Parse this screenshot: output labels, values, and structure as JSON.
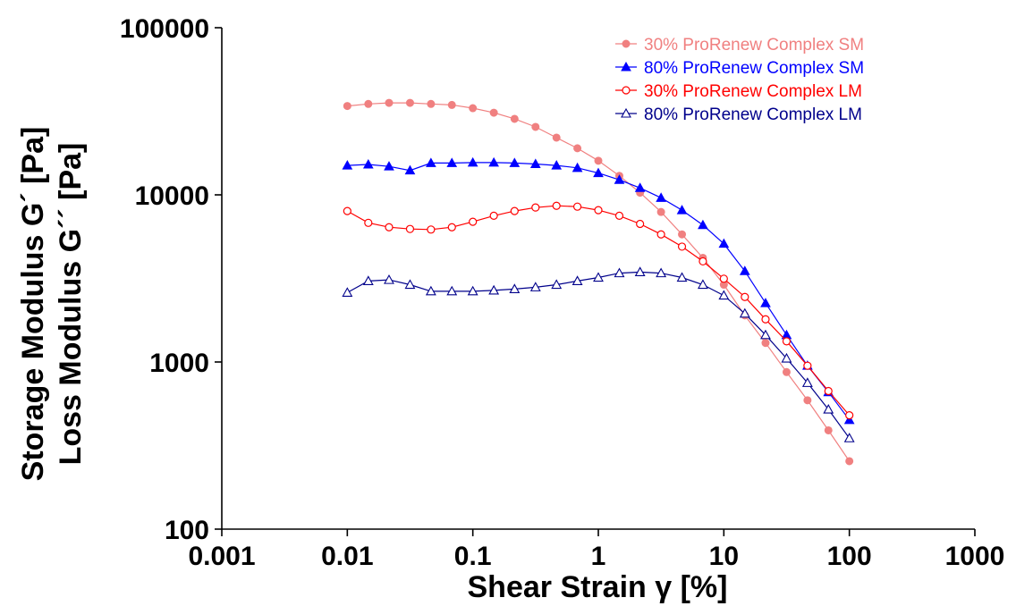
{
  "chart_data": {
    "type": "line",
    "xscale": "log",
    "yscale": "log",
    "xlim": [
      0.001,
      1000
    ],
    "ylim": [
      100,
      100000
    ],
    "xticks": [
      "0.001",
      "0.01",
      "0.1",
      "1",
      "10",
      "100",
      "1000"
    ],
    "yticks": [
      "100",
      "1000",
      "10000",
      "100000"
    ],
    "xlabel": "Shear Strain γ [%]",
    "ylabel_lines": [
      "Storage Modulus G´ [Pa]",
      "Loss Modulus G´´ [Pa]"
    ],
    "grid": false,
    "legend_position": "top-right",
    "series": [
      {
        "name": "30% ProRenew Complex SM",
        "color": "#f08080",
        "marker": "filled-circle",
        "x": [
          0.01,
          0.0147,
          0.0215,
          0.0316,
          0.0464,
          0.0681,
          0.1,
          0.147,
          0.215,
          0.316,
          0.464,
          0.681,
          1,
          1.47,
          2.15,
          3.16,
          4.64,
          6.81,
          10,
          14.7,
          21.5,
          31.6,
          46.4,
          68.1,
          100
        ],
        "y": [
          34000,
          35000,
          35500,
          35500,
          35000,
          34500,
          33000,
          31000,
          28500,
          25500,
          22000,
          19000,
          16000,
          13000,
          10300,
          7900,
          5800,
          4200,
          2900,
          1900,
          1300,
          870,
          590,
          390,
          255
        ]
      },
      {
        "name": "80% ProRenew Complex SM",
        "color": "#0000ff",
        "marker": "filled-triangle",
        "x": [
          0.01,
          0.0147,
          0.0215,
          0.0316,
          0.0464,
          0.0681,
          0.1,
          0.147,
          0.215,
          0.316,
          0.464,
          0.681,
          1,
          1.47,
          2.15,
          3.16,
          4.64,
          6.81,
          10,
          14.7,
          21.5,
          31.6,
          46.4,
          68.1,
          100
        ],
        "y": [
          15000,
          15200,
          14800,
          14000,
          15500,
          15500,
          15600,
          15600,
          15500,
          15300,
          15000,
          14500,
          13500,
          12300,
          11000,
          9600,
          8100,
          6600,
          5100,
          3500,
          2250,
          1450,
          950,
          660,
          450
        ]
      },
      {
        "name": "30% ProRenew Complex LM",
        "color": "#ff0000",
        "marker": "open-circle",
        "x": [
          0.01,
          0.0147,
          0.0215,
          0.0316,
          0.0464,
          0.0681,
          0.1,
          0.147,
          0.215,
          0.316,
          0.464,
          0.681,
          1,
          1.47,
          2.15,
          3.16,
          4.64,
          6.81,
          10,
          14.7,
          21.5,
          31.6,
          46.4,
          68.1,
          100
        ],
        "y": [
          8000,
          6800,
          6400,
          6250,
          6200,
          6400,
          6900,
          7500,
          8000,
          8400,
          8600,
          8500,
          8100,
          7500,
          6700,
          5800,
          4900,
          4000,
          3150,
          2450,
          1800,
          1330,
          950,
          670,
          480
        ]
      },
      {
        "name": "80% ProRenew Complex LM",
        "color": "#00008b",
        "marker": "open-triangle",
        "x": [
          0.01,
          0.0147,
          0.0215,
          0.0316,
          0.0464,
          0.0681,
          0.1,
          0.147,
          0.215,
          0.316,
          0.464,
          0.681,
          1,
          1.47,
          2.15,
          3.16,
          4.64,
          6.81,
          10,
          14.7,
          21.5,
          31.6,
          46.4,
          68.1,
          100
        ],
        "y": [
          2600,
          3050,
          3100,
          2900,
          2650,
          2650,
          2650,
          2680,
          2730,
          2800,
          2900,
          3050,
          3200,
          3400,
          3450,
          3400,
          3200,
          2900,
          2500,
          1950,
          1450,
          1050,
          750,
          520,
          350
        ]
      }
    ]
  }
}
